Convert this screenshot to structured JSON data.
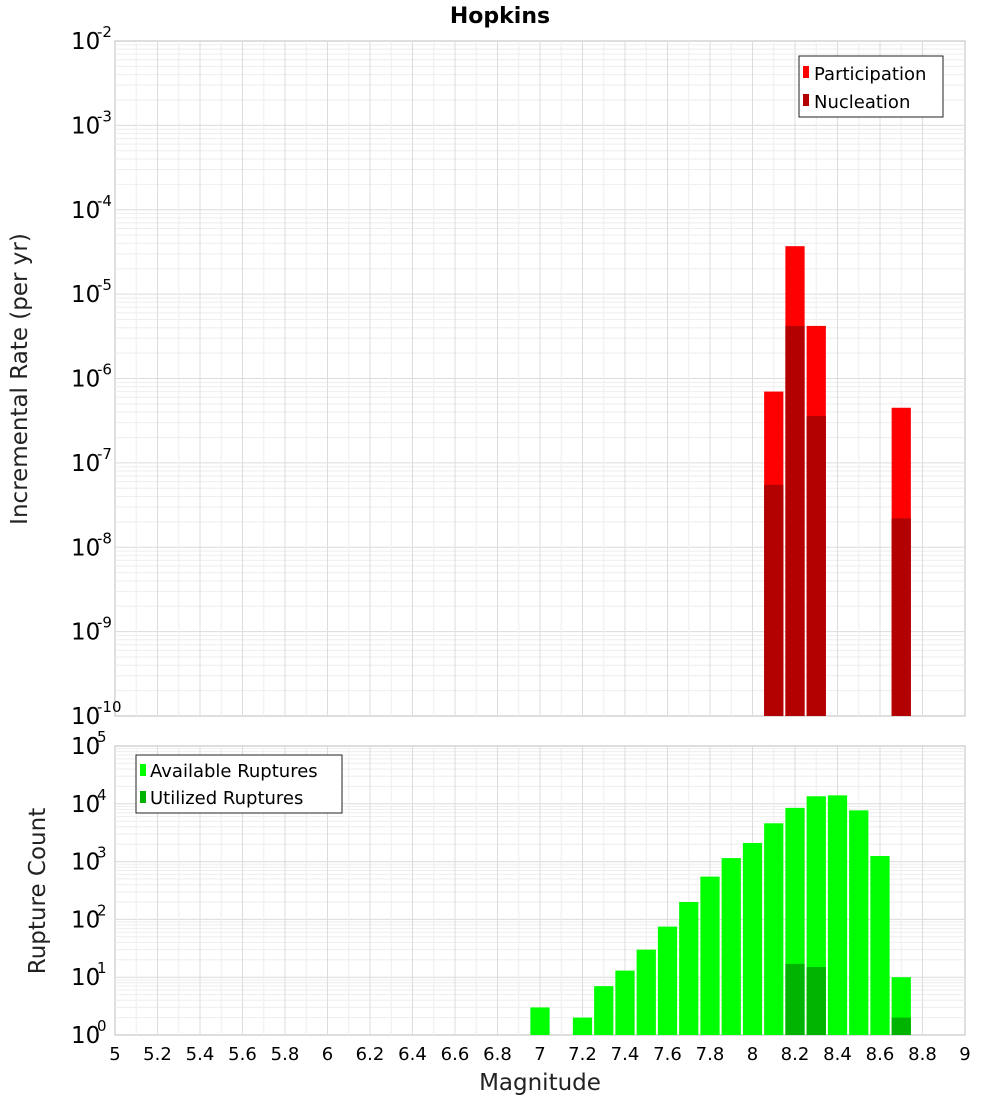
{
  "chart_data": [
    {
      "type": "bar",
      "title": "Hopkins",
      "xlabel": "",
      "ylabel": "Incremental Rate (per yr)",
      "yscale": "log",
      "ylim_exponents": [
        -10,
        -2
      ],
      "y_tick_base": "10",
      "y_tick_exponents": [
        "-10",
        "-9",
        "-8",
        "-7",
        "-6",
        "-5",
        "-4",
        "-3",
        "-2"
      ],
      "xlim": [
        5,
        9
      ],
      "bin_width": 0.1,
      "legend_position": "top-right",
      "grid": true,
      "series": [
        {
          "name": "Participation",
          "color": "#ff0000",
          "x": [
            8.1,
            8.2,
            8.3,
            8.7
          ],
          "values": [
            7e-07,
            3.7e-05,
            4.2e-06,
            4.5e-07
          ]
        },
        {
          "name": "Nucleation",
          "color": "#b30000",
          "x": [
            8.1,
            8.2,
            8.3,
            8.7
          ],
          "values": [
            5.5e-08,
            4.2e-06,
            3.6e-07,
            2.2e-08
          ]
        }
      ]
    },
    {
      "type": "bar",
      "title": "",
      "xlabel": "Magnitude",
      "ylabel": "Rupture Count",
      "yscale": "log",
      "ylim_exponents": [
        0,
        5
      ],
      "y_tick_base": "10",
      "y_tick_exponents": [
        "0",
        "1",
        "2",
        "3",
        "4",
        "5"
      ],
      "xlim": [
        5,
        9
      ],
      "bin_width": 0.1,
      "x_ticks": [
        "5",
        "5.2",
        "5.4",
        "5.6",
        "5.8",
        "6",
        "6.2",
        "6.4",
        "6.6",
        "6.8",
        "7",
        "7.2",
        "7.4",
        "7.6",
        "7.8",
        "8",
        "8.2",
        "8.4",
        "8.6",
        "8.8",
        "9"
      ],
      "legend_position": "top-left",
      "grid": true,
      "series": [
        {
          "name": "Available Ruptures",
          "color": "#00ff00",
          "x": [
            7.0,
            7.2,
            7.3,
            7.4,
            7.5,
            7.6,
            7.7,
            7.8,
            7.9,
            8.0,
            8.1,
            8.2,
            8.3,
            8.4,
            8.5,
            8.6,
            8.7
          ],
          "values": [
            3,
            2,
            7,
            13,
            30,
            75,
            200,
            550,
            1150,
            2100,
            4600,
            8500,
            13500,
            14000,
            7700,
            1250,
            10
          ]
        },
        {
          "name": "Utilized Ruptures",
          "color": "#00b300",
          "x": [
            8.1,
            8.2,
            8.3,
            8.7
          ],
          "values": [
            1,
            17,
            15,
            2
          ]
        }
      ]
    }
  ]
}
